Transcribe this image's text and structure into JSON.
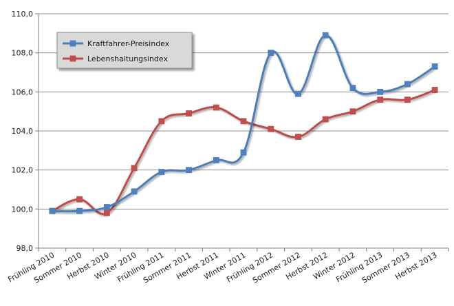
{
  "chart_data": {
    "type": "line",
    "categories": [
      "Frühling 2010",
      "Sommer 2010",
      "Herbst 2010",
      "Winter 2010",
      "Frühling 2011",
      "Sommer 2011",
      "Herbst 2011",
      "Winter 2011",
      "Frühling 2012",
      "Sommer 2012",
      "Herbst 2012",
      "Winter 2012",
      "Frühling 2013",
      "Sommer 2013",
      "Herbst 2013"
    ],
    "series": [
      {
        "name": "Kraftfahrer-Preisindex",
        "color": "#4a7ebb",
        "marker_color": "#4f81bd",
        "values": [
          99.9,
          99.9,
          100.1,
          100.9,
          101.9,
          102.0,
          102.5,
          102.9,
          108.0,
          105.9,
          108.9,
          106.2,
          106.0,
          106.4,
          107.3
        ]
      },
      {
        "name": "Lebenshaltungsindex",
        "color": "#be4b48",
        "marker_color": "#c0504d",
        "values": [
          99.9,
          100.5,
          99.8,
          102.1,
          104.5,
          104.9,
          105.2,
          104.5,
          104.1,
          103.7,
          104.6,
          105.0,
          105.6,
          105.6,
          106.1
        ]
      }
    ],
    "ylim": [
      98.0,
      110.0
    ],
    "yticks": [
      "98,0",
      "100,0",
      "102,0",
      "104,0",
      "106,0",
      "108,0",
      "110,0"
    ],
    "grid": true,
    "legend_position": "top-left",
    "title": "",
    "xlabel": "",
    "ylabel": ""
  }
}
